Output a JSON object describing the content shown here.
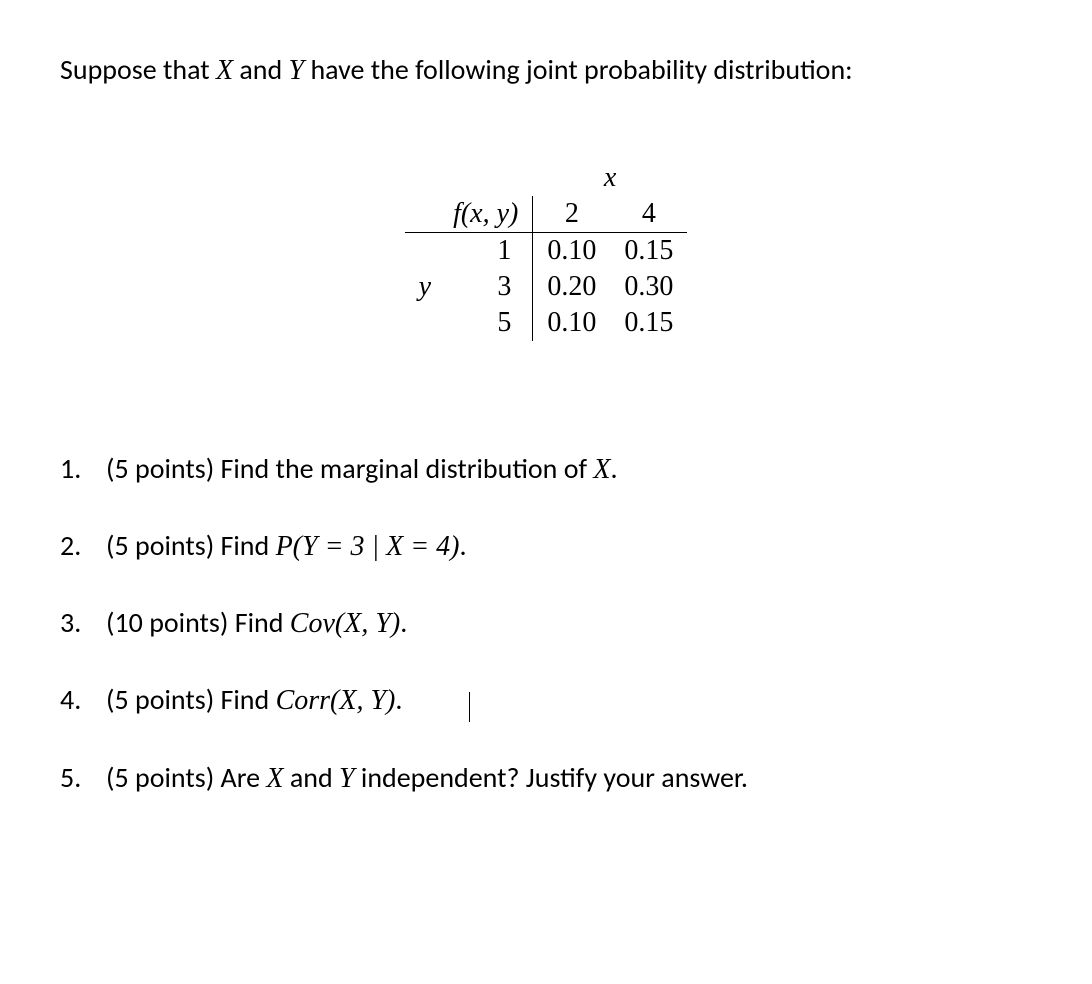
{
  "intro": {
    "prefix": "Suppose that ",
    "var1": "X",
    "mid1": " and ",
    "var2": "Y",
    "suffix": " have the following joint probability distribution:"
  },
  "table": {
    "x_label": "x",
    "fxy_label": "f(x, y)",
    "y_label": "y",
    "x_values": [
      "2",
      "4"
    ],
    "y_values": [
      "1",
      "3",
      "5"
    ],
    "cells": [
      [
        "0.10",
        "0.15"
      ],
      [
        "0.20",
        "0.30"
      ],
      [
        "0.10",
        "0.15"
      ]
    ]
  },
  "questions": [
    {
      "num": "1.",
      "points": "(5 points)",
      "text_before": " Find the marginal distribution of ",
      "expr": "X",
      "text_after": "."
    },
    {
      "num": "2.",
      "points": "(5 points)",
      "text_before": " Find ",
      "expr": "P(Y = 3 | X = 4)",
      "text_after": "."
    },
    {
      "num": "3.",
      "points": "(10 points)",
      "text_before": " Find ",
      "expr": "Cov(X, Y)",
      "text_after": "."
    },
    {
      "num": "4.",
      "points": "(5 points)",
      "text_before": " Find ",
      "expr": "Corr(X, Y)",
      "text_after": ".",
      "has_cursor": true
    },
    {
      "num": "5.",
      "points": "(5 points)",
      "text_before": " Are ",
      "expr": "X",
      "mid": " and ",
      "expr2": "Y",
      "text_after": " independent? Justify your answer."
    }
  ],
  "colors": {
    "text": "#000000",
    "background": "#ffffff",
    "border": "#000000"
  },
  "fontsize": {
    "body": 28,
    "table": 28
  }
}
